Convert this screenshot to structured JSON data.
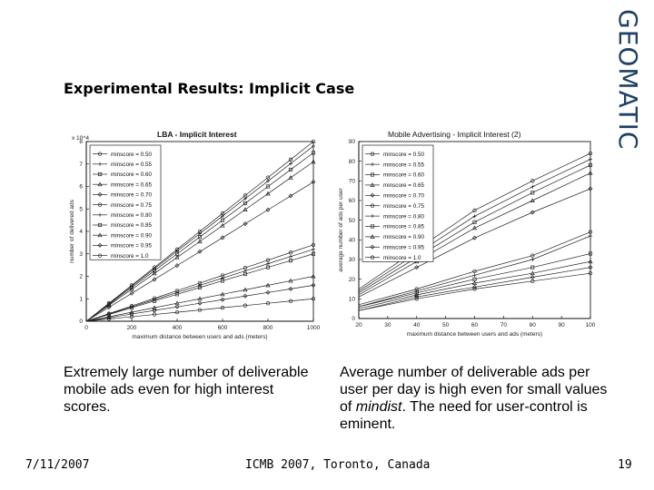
{
  "slide": {
    "title": "Experimental Results: Implicit Case",
    "logo": "GEOMATIC",
    "caption_left": "Extremely large number of deliverable mobile ads even for high interest scores.",
    "caption_right_before": "Average number of deliverable ads per user per day is high even for small values of ",
    "caption_right_em": "mindist",
    "caption_right_after": ". The need for user-control is eminent.",
    "footer_date": "7/11/2007",
    "footer_conference": "ICMB 2007, Toronto, Canada",
    "footer_page": "19"
  },
  "chart_data": [
    {
      "type": "line",
      "title": "LBA - Implicit Interest",
      "xlabel": "maximum distance between users and ads (meters)",
      "ylabel": "number of delivered ads",
      "y_exponent": "x 10^4",
      "x": [
        0,
        100,
        200,
        300,
        400,
        500,
        600,
        700,
        800,
        900,
        1000
      ],
      "xticks": [
        "0",
        "200",
        "400",
        "600",
        "800",
        "1000"
      ],
      "yticks": [
        "0",
        "1",
        "2",
        "3",
        "4",
        "5",
        "6",
        "7",
        "8"
      ],
      "xlim": [
        0,
        1000
      ],
      "ylim": [
        0,
        8
      ],
      "legend": "top-left",
      "series": [
        {
          "name": "minscore = 0.50",
          "values": [
            0,
            0.8,
            1.6,
            2.4,
            3.2,
            4.0,
            4.8,
            5.6,
            6.4,
            7.2,
            8.0
          ]
        },
        {
          "name": "minscore = 0.55",
          "values": [
            0,
            0.78,
            1.56,
            2.34,
            3.12,
            3.9,
            4.68,
            5.46,
            6.24,
            7.02,
            7.8
          ]
        },
        {
          "name": "minscore = 0.60",
          "values": [
            0,
            0.75,
            1.5,
            2.25,
            3.0,
            3.75,
            4.5,
            5.25,
            6.0,
            6.75,
            7.5
          ]
        },
        {
          "name": "minscore = 0.65",
          "values": [
            0,
            0.71,
            1.42,
            2.13,
            2.84,
            3.55,
            4.26,
            4.97,
            5.68,
            6.39,
            7.1
          ]
        },
        {
          "name": "minscore = 0.70",
          "values": [
            0,
            0.62,
            1.24,
            1.86,
            2.48,
            3.1,
            3.72,
            4.34,
            4.96,
            5.58,
            6.2
          ]
        },
        {
          "name": "minscore = 0.75",
          "values": [
            0,
            0.34,
            0.68,
            1.02,
            1.36,
            1.7,
            2.04,
            2.38,
            2.72,
            3.06,
            3.4
          ]
        },
        {
          "name": "minscore = 0.80",
          "values": [
            0,
            0.32,
            0.64,
            0.96,
            1.28,
            1.6,
            1.92,
            2.24,
            2.56,
            2.88,
            3.2
          ]
        },
        {
          "name": "minscore = 0.85",
          "values": [
            0,
            0.3,
            0.6,
            0.9,
            1.2,
            1.5,
            1.8,
            2.1,
            2.4,
            2.7,
            3.0
          ]
        },
        {
          "name": "minscore = 0.90",
          "values": [
            0,
            0.2,
            0.4,
            0.6,
            0.8,
            1.0,
            1.2,
            1.4,
            1.6,
            1.8,
            2.0
          ]
        },
        {
          "name": "minscore = 0.95",
          "values": [
            0,
            0.16,
            0.32,
            0.48,
            0.64,
            0.8,
            0.96,
            1.12,
            1.28,
            1.44,
            1.6
          ]
        },
        {
          "name": "minscore = 1.0",
          "values": [
            0,
            0.1,
            0.2,
            0.3,
            0.4,
            0.5,
            0.6,
            0.7,
            0.8,
            0.9,
            1.0
          ]
        }
      ]
    },
    {
      "type": "line",
      "title": "Mobile Advertising - Implicit Interest (2)",
      "xlabel": "maximum distance between users and ads (meters)",
      "ylabel": "average number of ads per user",
      "x": [
        20,
        40,
        60,
        80,
        100
      ],
      "xticks": [
        "20",
        "30",
        "40",
        "50",
        "60",
        "70",
        "80",
        "90",
        "100"
      ],
      "yticks": [
        "0",
        "10",
        "20",
        "30",
        "40",
        "50",
        "60",
        "70",
        "80",
        "90"
      ],
      "xlim": [
        20,
        100
      ],
      "ylim": [
        0,
        90
      ],
      "legend": "top-left",
      "series": [
        {
          "name": "minscore = 0.50",
          "values": [
            15,
            35,
            55,
            70,
            84
          ]
        },
        {
          "name": "minscore = 0.55",
          "values": [
            14,
            33,
            52,
            67,
            81
          ]
        },
        {
          "name": "minscore = 0.60",
          "values": [
            13,
            31,
            49,
            64,
            78
          ]
        },
        {
          "name": "minscore = 0.65",
          "values": [
            12,
            29,
            46,
            60,
            74
          ]
        },
        {
          "name": "minscore = 0.70",
          "values": [
            11,
            26,
            41,
            54,
            66
          ]
        },
        {
          "name": "minscore = 0.75",
          "values": [
            7,
            15,
            24,
            32,
            44
          ]
        },
        {
          "name": "minscore = 0.80",
          "values": [
            6,
            14,
            22,
            30,
            42
          ]
        },
        {
          "name": "minscore = 0.85",
          "values": [
            6,
            13,
            20,
            26,
            33
          ]
        },
        {
          "name": "minscore = 0.90",
          "values": [
            5,
            12,
            18,
            23,
            29
          ]
        },
        {
          "name": "minscore = 0.95",
          "values": [
            4,
            11,
            16,
            21,
            26
          ]
        },
        {
          "name": "minscore = 1.0",
          "values": [
            4,
            10,
            15,
            19,
            23
          ]
        }
      ]
    }
  ]
}
